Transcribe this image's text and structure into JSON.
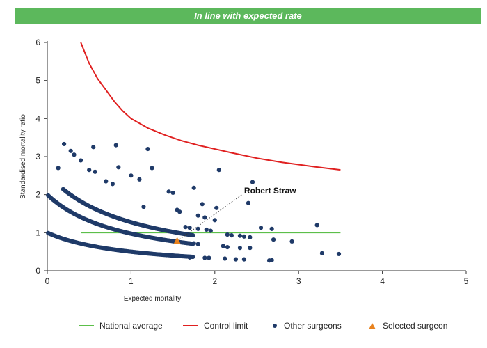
{
  "banner": {
    "title": "In line with expected rate",
    "color": "#5cb85c"
  },
  "chart_data": {
    "type": "scatter",
    "xlabel": "Expected mortality",
    "ylabel": "Standardised mortality ratio",
    "xlim": [
      0,
      5
    ],
    "ylim": [
      0,
      6
    ],
    "xticks": [
      "0",
      "1",
      "2",
      "3",
      "4",
      "5"
    ],
    "yticks": [
      "0",
      "1",
      "2",
      "3",
      "4",
      "5",
      "6"
    ],
    "grid": false,
    "legend_position": "bottom",
    "national_average": {
      "name": "National average",
      "color": "#5cbf4a",
      "y": 1,
      "x_range": [
        0.4,
        3.5
      ]
    },
    "control_limit": {
      "name": "Control limit",
      "color": "#e02020",
      "points": [
        [
          0.4,
          6.0
        ],
        [
          0.5,
          5.45
        ],
        [
          0.6,
          5.05
        ],
        [
          0.7,
          4.75
        ],
        [
          0.8,
          4.45
        ],
        [
          0.9,
          4.2
        ],
        [
          1.0,
          4.0
        ],
        [
          1.2,
          3.75
        ],
        [
          1.4,
          3.57
        ],
        [
          1.6,
          3.42
        ],
        [
          1.8,
          3.3
        ],
        [
          2.0,
          3.2
        ],
        [
          2.2,
          3.1
        ],
        [
          2.5,
          2.96
        ],
        [
          2.8,
          2.85
        ],
        [
          3.0,
          2.79
        ],
        [
          3.2,
          2.73
        ],
        [
          3.5,
          2.65
        ]
      ]
    },
    "selected_surgeon": {
      "name": "Selected surgeon",
      "color": "#e8821e",
      "label": "Robert Straw",
      "x": 1.55,
      "y": 0.78,
      "label_x": 2.3,
      "label_y": 2.05
    },
    "other_surgeons": {
      "name": "Other surgeons",
      "color": "#1f3a68",
      "curve_counts": [
        1,
        2,
        3
      ],
      "points": [
        [
          0.2,
          3.33
        ],
        [
          0.28,
          3.15
        ],
        [
          0.32,
          3.05
        ],
        [
          0.4,
          2.9
        ],
        [
          0.55,
          3.25
        ],
        [
          0.82,
          3.3
        ],
        [
          1.2,
          3.2
        ],
        [
          0.13,
          2.7
        ],
        [
          0.5,
          2.65
        ],
        [
          0.57,
          2.6
        ],
        [
          0.85,
          2.72
        ],
        [
          1.25,
          2.7
        ],
        [
          1.0,
          2.5
        ],
        [
          1.1,
          2.4
        ],
        [
          0.7,
          2.35
        ],
        [
          0.78,
          2.28
        ],
        [
          1.45,
          2.08
        ],
        [
          1.5,
          2.05
        ],
        [
          2.05,
          2.65
        ],
        [
          2.45,
          2.33
        ],
        [
          1.75,
          2.18
        ],
        [
          2.4,
          1.78
        ],
        [
          1.85,
          1.75
        ],
        [
          2.02,
          1.65
        ],
        [
          1.15,
          1.68
        ],
        [
          1.55,
          1.6
        ],
        [
          1.58,
          1.55
        ],
        [
          1.8,
          1.45
        ],
        [
          1.88,
          1.4
        ],
        [
          2.0,
          1.33
        ],
        [
          1.65,
          1.15
        ],
        [
          1.7,
          1.13
        ],
        [
          1.8,
          1.1
        ],
        [
          1.9,
          1.08
        ],
        [
          1.95,
          1.05
        ],
        [
          2.15,
          0.95
        ],
        [
          2.2,
          0.93
        ],
        [
          2.3,
          0.92
        ],
        [
          2.35,
          0.9
        ],
        [
          2.42,
          0.88
        ],
        [
          2.55,
          1.13
        ],
        [
          2.68,
          1.1
        ],
        [
          3.22,
          1.2
        ],
        [
          2.7,
          0.82
        ],
        [
          2.92,
          0.77
        ],
        [
          1.75,
          0.72
        ],
        [
          1.8,
          0.7
        ],
        [
          2.1,
          0.65
        ],
        [
          2.15,
          0.62
        ],
        [
          2.3,
          0.6
        ],
        [
          2.42,
          0.6
        ],
        [
          3.28,
          0.46
        ],
        [
          3.48,
          0.44
        ],
        [
          1.7,
          0.35
        ],
        [
          1.88,
          0.34
        ],
        [
          1.93,
          0.34
        ],
        [
          2.12,
          0.32
        ],
        [
          2.25,
          0.3
        ],
        [
          2.35,
          0.3
        ],
        [
          2.65,
          0.27
        ],
        [
          2.68,
          0.28
        ]
      ]
    }
  }
}
